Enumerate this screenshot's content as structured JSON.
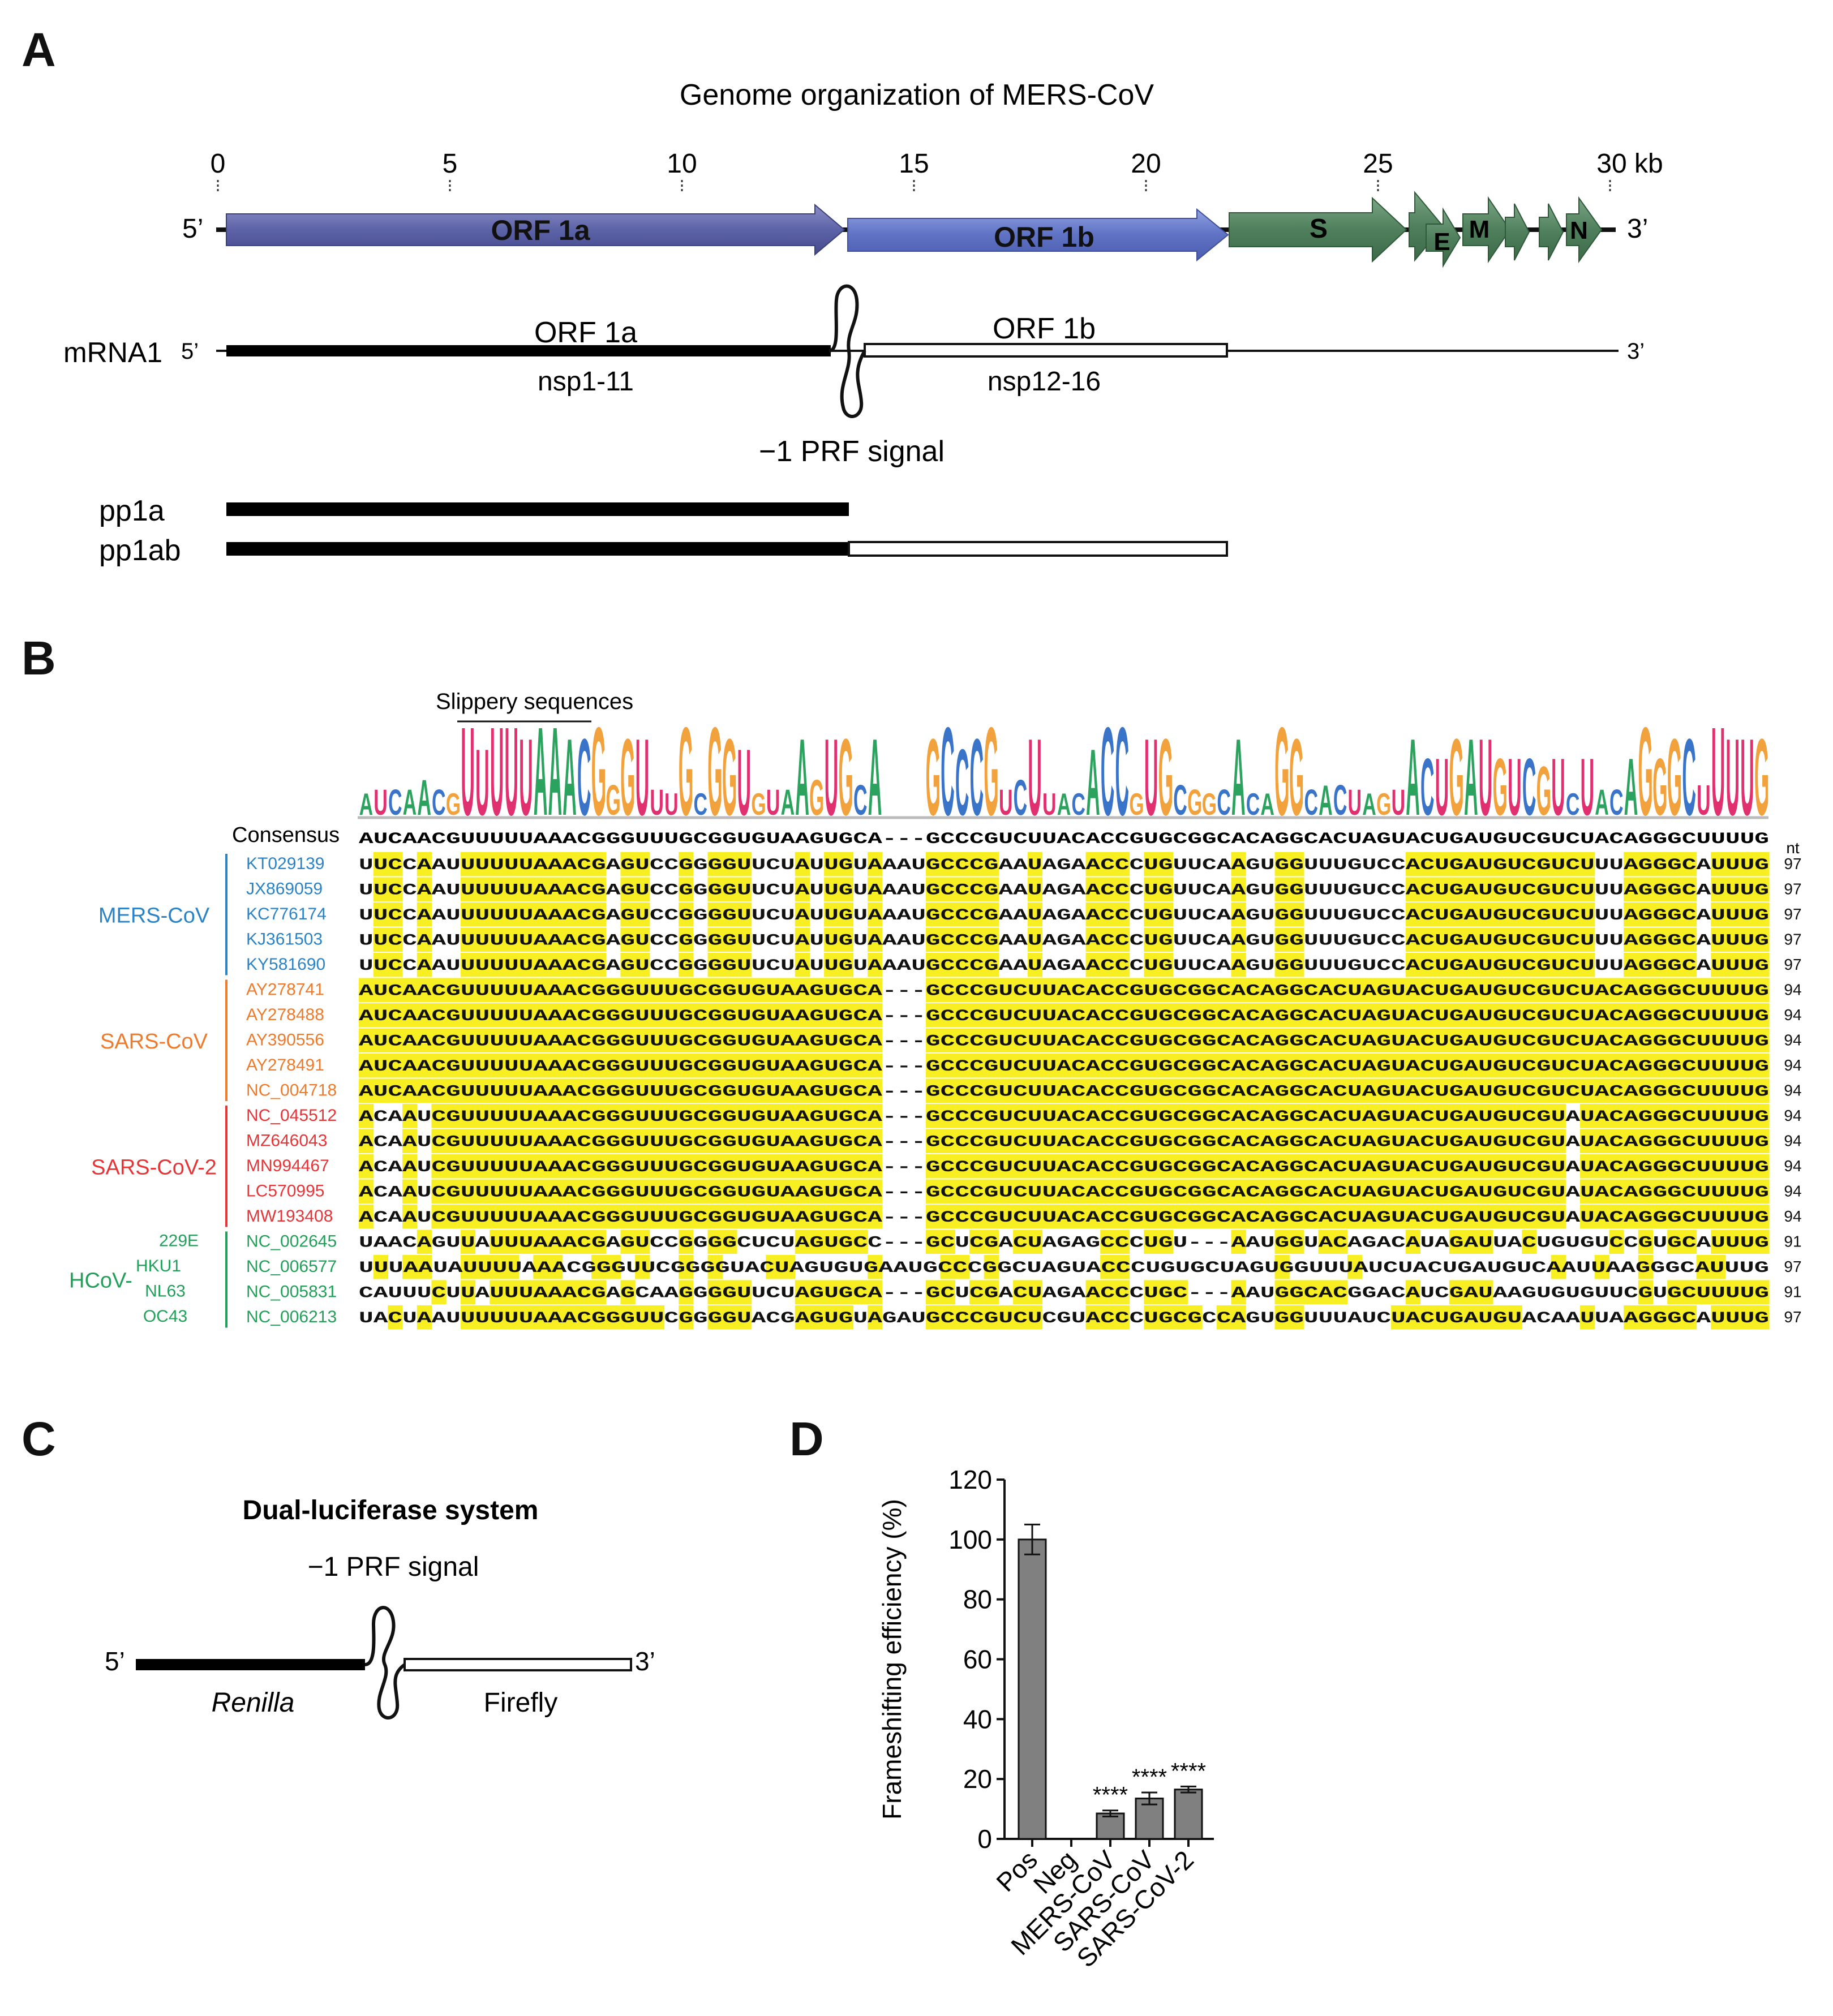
{
  "panels": {
    "a": "A",
    "b": "B",
    "c": "C",
    "d": "D"
  },
  "panelA": {
    "title": "Genome organization of MERS-CoV",
    "ticks": [
      "0",
      "5",
      "10",
      "15",
      "20",
      "25",
      "30 kb"
    ],
    "genes": [
      "ORF 1a",
      "ORF 1b",
      "S",
      "E",
      "M",
      "N"
    ],
    "end5": "5’",
    "end3": "3’",
    "mrna_label": "mRNA1",
    "orf1a_label": "ORF 1a",
    "orf1a_sub": "nsp1-11",
    "orf1b_label": "ORF 1b",
    "orf1b_sub": "nsp12-16",
    "prf_label": "−1 PRF signal",
    "pp1a": "pp1a",
    "pp1ab": "pp1ab"
  },
  "panelB": {
    "slippery_label": "Slippery sequences",
    "consensus_label": "Consensus",
    "consensus": "AUCAACGUUUUUAAACGGGUUUGCGGUGUAAGUGCA---GCCCGUCUUACACCGUGCGGCACAGGCACUAGUACUGAUGUCGUCUACAGGGCUUUUG",
    "nt_header": "nt",
    "groups": [
      {
        "name": "MERS-CoV",
        "color": "#2b83c6"
      },
      {
        "name": "SARS-CoV",
        "color": "#ee7a2c"
      },
      {
        "name": "SARS-CoV-2",
        "color": "#e63437"
      },
      {
        "name": "HCoV-",
        "color": "#22a05a"
      }
    ],
    "sublabels": [
      "229E",
      "HKU1",
      "NL63",
      "OC43"
    ],
    "rows": [
      {
        "id": "KT029139",
        "group": 0,
        "seq": "UUCCAAUUUUUUAAACGAGUCCGGGGUUCUAUUGUAAAUGCCCGAAUAGAACCCUGUUCAAGUGGUUUGUCCACUGAUGUCGUCUUUAGGGCAUUUG",
        "nt": "97"
      },
      {
        "id": "JX869059",
        "group": 0,
        "seq": "UUCCAAUUUUUUAAACGAGUCCGGGGUUCUAUUGUAAAUGCCCGAAUAGAACCCUGUUCAAGUGGUUUGUCCACUGAUGUCGUCUUUAGGGCAUUUG",
        "nt": "97"
      },
      {
        "id": "KC776174",
        "group": 0,
        "seq": "UUCCAAUUUUUUAAACGAGUCCGGGGUUCUAUUGUAAAUGCCCGAAUAGAACCCUGUUCAAGUGGUUUGUCCACUGAUGUCGUCUUUAGGGCAUUUG",
        "nt": "97"
      },
      {
        "id": "KJ361503",
        "group": 0,
        "seq": "UUCCAAUUUUUUAAACGAGUCCGGGGUUCUAUUGUAAAUGCCCGAAUAGAACCCUGUUCAAGUGGUUUGUCCACUGAUGUCGUCUUUAGGGCAUUUG",
        "nt": "97"
      },
      {
        "id": "KY581690",
        "group": 0,
        "seq": "UUCCAAUUUUUUAAACGAGUCCGGGGUUCUAUUGUAAAUGCCCGAAUAGAACCCUGUUCAAGUGGUUUGUCCACUGAUGUCGUCUUUAGGGCAUUUG",
        "nt": "97"
      },
      {
        "id": "AY278741",
        "group": 1,
        "seq": "AUCAACGUUUUUAAACGGGUUUGCGGUGUAAGUGCA---GCCCGUCUUACACCGUGCGGCACAGGCACUAGUACUGAUGUCGUCUACAGGGCUUUUG",
        "nt": "94"
      },
      {
        "id": "AY278488",
        "group": 1,
        "seq": "AUCAACGUUUUUAAACGGGUUUGCGGUGUAAGUGCA---GCCCGUCUUACACCGUGCGGCACAGGCACUAGUACUGAUGUCGUCUACAGGGCUUUUG",
        "nt": "94"
      },
      {
        "id": "AY390556",
        "group": 1,
        "seq": "AUCAACGUUUUUAAACGGGUUUGCGGUGUAAGUGCA---GCCCGUCUUACACCGUGCGGCACAGGCACUAGUACUGAUGUCGUCUACAGGGCUUUUG",
        "nt": "94"
      },
      {
        "id": "AY278491",
        "group": 1,
        "seq": "AUCAACGUUUUUAAACGGGUUUGCGGUGUAAGUGCA---GCCCGUCUUACACCGUGCGGCACAGGCACUAGUACUGAUGUCGUCUACAGGGCUUUUG",
        "nt": "94"
      },
      {
        "id": "NC_004718",
        "group": 1,
        "seq": "AUCAACGUUUUUAAACGGGUUUGCGGUGUAAGUGCA---GCCCGUCUUACACCGUGCGGCACAGGCACUAGUACUGAUGUCGUCUACAGGGCUUUUG",
        "nt": "94"
      },
      {
        "id": "NC_045512",
        "group": 2,
        "seq": "ACAAUCGUUUUUAAACGGGUUUGCGGUGUAAGUGCA---GCCCGUCUUACACCGUGCGGCACAGGCACUAGUACUGAUGUCGUAUACAGGGCUUUUG",
        "nt": "94"
      },
      {
        "id": "MZ646043",
        "group": 2,
        "seq": "ACAAUCGUUUUUAAACGGGUUUGCGGUGUAAGUGCA---GCCCGUCUUACACCGUGCGGCACAGGCACUAGUACUGAUGUCGUAUACAGGGCUUUUG",
        "nt": "94"
      },
      {
        "id": "MN994467",
        "group": 2,
        "seq": "ACAAUCGUUUUUAAACGGGUUUGCGGUGUAAGUGCA---GCCCGUCUUACACCGUGCGGCACAGGCACUAGUACUGAUGUCGUAUACAGGGCUUUUG",
        "nt": "94"
      },
      {
        "id": "LC570995",
        "group": 2,
        "seq": "ACAAUCGUUUUUAAACGGGUUUGCGGUGUAAGUGCA---GCCCGUCUUACACCGUGCGGCACAGGCACUAGUACUGAUGUCGUAUACAGGGCUUUUG",
        "nt": "94"
      },
      {
        "id": "MW193408",
        "group": 2,
        "seq": "ACAAUCGUUUUUAAACGGGUUUGCGGUGUAAGUGCA---GCCCGUCUUACACCGUGCGGCACAGGCACUAGUACUGAUGUCGUAUACAGGGCUUUUG",
        "nt": "94"
      },
      {
        "id": "NC_002645",
        "group": 3,
        "seq": "UAACAGUUAUUUAAACGAGUCCGGGGCUCUAGUGCC---GCUCGACUAGAGCCCUGU---AAUGGUACAGACAUAGAUUACUGUGUCCGUGCAUUUG",
        "nt": "91"
      },
      {
        "id": "NC_006577",
        "group": 3,
        "seq": "UUUAAUAUUUUAAACGGGUUCGGGGUACUAGUGUGAAUGCCCGGCUAGUACCCUGUGCUAGUGGUUUAUCUACUGAUGUCAAUUAAGGGCAUUUG",
        "nt": "97"
      },
      {
        "id": "NC_005831",
        "group": 3,
        "seq": "CAUUUCUUAUUUAAACGAGCAAGGGGUUCUAGUGCA---GCUCGACUAGAACCCUGC---AAUGGCACGGACAUCGAUAAGUGUGUUCGUGCUUUUG",
        "nt": "91"
      },
      {
        "id": "NC_006213",
        "group": 3,
        "seq": "UACUAAUUUUUUAAACGGGUUCGGGGUACGAGUGUAGAUGCCCGUCUCGUACCCUGCGCCAGUGGUUUAUCUACUGAUGUACAAUUAAGGGCAUUUG",
        "nt": "97"
      }
    ]
  },
  "panelC": {
    "title": "Dual-luciferase system",
    "prf_label": "−1 PRF signal",
    "end5": "5’",
    "end3": "3’",
    "renilla": "Renilla",
    "firefly": "Firefly"
  },
  "chart_data": {
    "type": "bar",
    "ylabel": "Frameshifting efficiency (%)",
    "categories": [
      "Pos",
      "Neg",
      "MERS-CoV",
      "SARS-CoV",
      "SARS-CoV-2"
    ],
    "values": [
      100,
      0,
      8.5,
      13.5,
      16.5
    ],
    "errors": [
      5,
      0,
      1,
      2,
      1
    ],
    "annotations": [
      "",
      "",
      "****",
      "****",
      "****"
    ],
    "ylim": [
      0,
      120
    ],
    "yticks": [
      "0",
      "20",
      "40",
      "60",
      "80",
      "100",
      "120"
    ],
    "bar_color": "#808080"
  }
}
